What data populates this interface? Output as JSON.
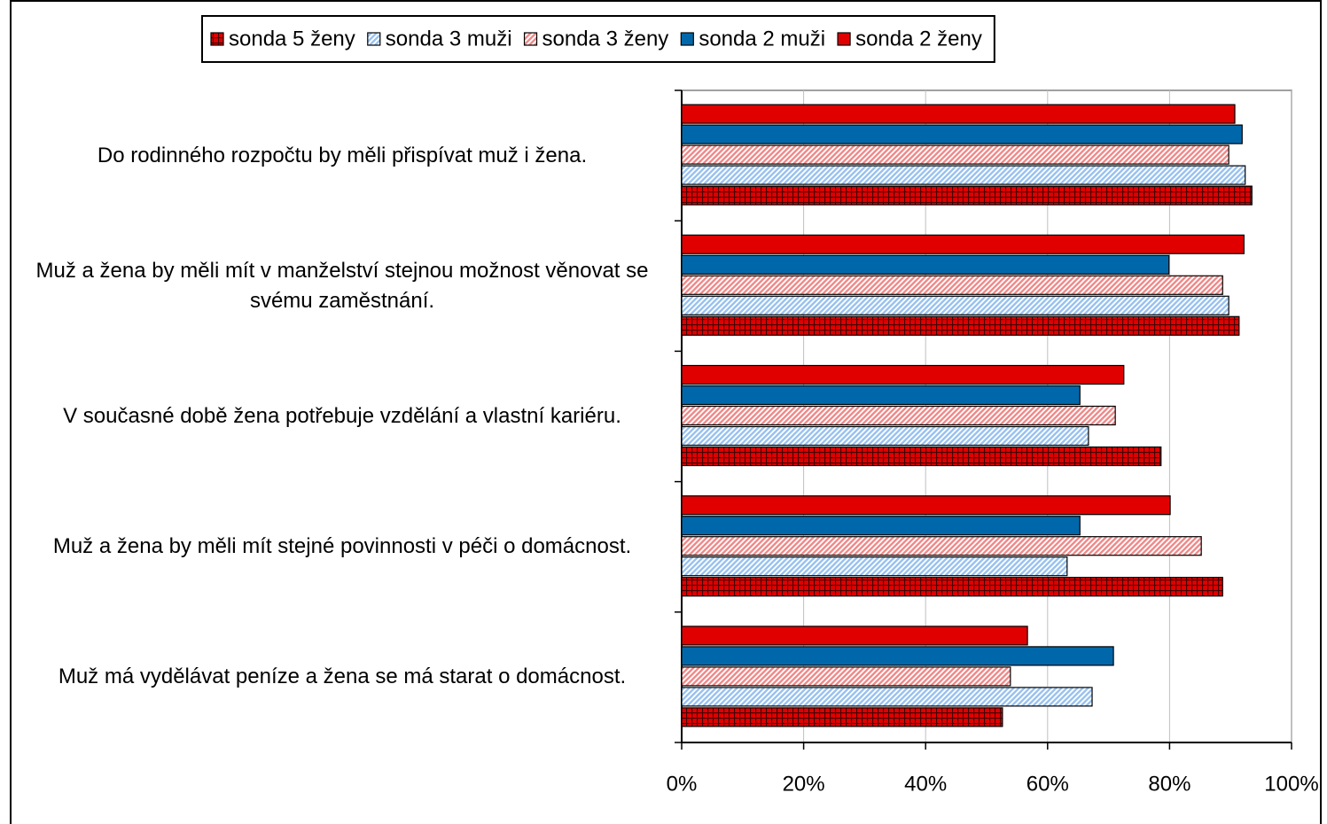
{
  "chart_data": {
    "type": "hbar",
    "categories": [
      "Do rodinného rozpočtu by měli přispívat muž i žena.",
      "Muž a žena by měli mít v manželství stejnou možnost věnovat se svému zaměstnání.",
      "V současné době žena potřebuje vzdělání a vlastní kariéru.",
      "Muž a žena by měli mít stejné povinnosti v péči o domácnost.",
      "Muž má vydělávat peníze a žena se má starat o domácnost."
    ],
    "series": [
      {
        "name": "sonda 5 ženy",
        "color": "#e00000",
        "pattern": "grid",
        "values": [
          93.5,
          91.4,
          78.6,
          88.7,
          52.6
        ]
      },
      {
        "name": "sonda 3 muži",
        "color": "#99c2f0",
        "pattern": "diagonal",
        "values": [
          92.4,
          89.7,
          66.7,
          63.2,
          67.3
        ]
      },
      {
        "name": "sonda 3 ženy",
        "color": "#f08a8a",
        "pattern": "diagonal",
        "values": [
          89.7,
          88.7,
          71.1,
          85.2,
          53.9
        ]
      },
      {
        "name": "sonda 2 muži",
        "color": "#0068aa",
        "pattern": "solid",
        "values": [
          91.9,
          79.9,
          65.3,
          65.3,
          70.8
        ]
      },
      {
        "name": "sonda 2 ženy",
        "color": "#e00000",
        "pattern": "solid",
        "values": [
          90.7,
          92.2,
          72.5,
          80.1,
          56.7
        ]
      }
    ],
    "xlim": [
      0,
      100
    ],
    "xticks": [
      {
        "value": 0,
        "label": "0%"
      },
      {
        "value": 20,
        "label": "20%"
      },
      {
        "value": 40,
        "label": "40%"
      },
      {
        "value": 60,
        "label": "60%"
      },
      {
        "value": 80,
        "label": "80%"
      },
      {
        "value": 100,
        "label": "100%"
      }
    ],
    "grid": true,
    "legend": "top"
  }
}
